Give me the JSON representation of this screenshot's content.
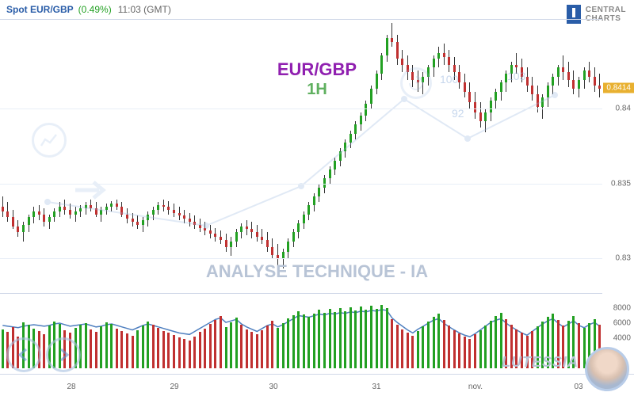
{
  "header": {
    "title": "Spot EUR/GBP",
    "change": "(0.49%)",
    "time": "11:03 (GMT)"
  },
  "logo": {
    "line1": "CENTRAL",
    "line2": "CHARTS"
  },
  "overlay": {
    "pair": "EUR/GBP",
    "tf": "1H",
    "section": "ANALYSE TECHNIQUE - IA"
  },
  "footer_brand": "LUTESSIA",
  "wm_labels": {
    "a": "100",
    "b": "92",
    "c": "103"
  },
  "main": {
    "ylim": [
      0.828,
      0.846
    ],
    "yticks": [
      0.83,
      0.835,
      0.84
    ],
    "price_tag": 0.8414,
    "grid_color": "#e8eef7",
    "up_color": "#22a022",
    "down_color": "#c03030",
    "wick_color": "#333333",
    "candles": [
      [
        0.8335,
        0.8342,
        0.8328,
        0.8332
      ],
      [
        0.8332,
        0.8338,
        0.8325,
        0.8328
      ],
      [
        0.8328,
        0.8333,
        0.832,
        0.8322
      ],
      [
        0.8322,
        0.8326,
        0.8315,
        0.8318
      ],
      [
        0.8318,
        0.8325,
        0.8312,
        0.8323
      ],
      [
        0.8323,
        0.833,
        0.8318,
        0.8328
      ],
      [
        0.8328,
        0.8335,
        0.8324,
        0.8332
      ],
      [
        0.8332,
        0.8336,
        0.8326,
        0.833
      ],
      [
        0.833,
        0.8334,
        0.8322,
        0.8325
      ],
      [
        0.8325,
        0.833,
        0.832,
        0.8328
      ],
      [
        0.8328,
        0.8334,
        0.8325,
        0.8332
      ],
      [
        0.8332,
        0.8338,
        0.8328,
        0.8335
      ],
      [
        0.8335,
        0.834,
        0.833,
        0.8333
      ],
      [
        0.8333,
        0.8337,
        0.8327,
        0.833
      ],
      [
        0.833,
        0.8335,
        0.8325,
        0.8332
      ],
      [
        0.8332,
        0.8336,
        0.8328,
        0.8334
      ],
      [
        0.8334,
        0.8338,
        0.833,
        0.8336
      ],
      [
        0.8336,
        0.834,
        0.8332,
        0.8334
      ],
      [
        0.8334,
        0.8338,
        0.8328,
        0.833
      ],
      [
        0.833,
        0.8335,
        0.8325,
        0.8333
      ],
      [
        0.8333,
        0.8337,
        0.833,
        0.8335
      ],
      [
        0.8335,
        0.8339,
        0.8332,
        0.8337
      ],
      [
        0.8337,
        0.834,
        0.8333,
        0.8335
      ],
      [
        0.8335,
        0.8338,
        0.8328,
        0.833
      ],
      [
        0.833,
        0.8334,
        0.8324,
        0.8327
      ],
      [
        0.8327,
        0.8331,
        0.8322,
        0.8325
      ],
      [
        0.8325,
        0.8329,
        0.832,
        0.8323
      ],
      [
        0.8323,
        0.8328,
        0.8318,
        0.8326
      ],
      [
        0.8326,
        0.8332,
        0.8322,
        0.833
      ],
      [
        0.833,
        0.8335,
        0.8326,
        0.8333
      ],
      [
        0.8333,
        0.8338,
        0.833,
        0.8336
      ],
      [
        0.8336,
        0.834,
        0.8332,
        0.8335
      ],
      [
        0.8335,
        0.8339,
        0.833,
        0.8333
      ],
      [
        0.8333,
        0.8337,
        0.8328,
        0.8331
      ],
      [
        0.8331,
        0.8335,
        0.8326,
        0.8329
      ],
      [
        0.8329,
        0.8333,
        0.8324,
        0.8327
      ],
      [
        0.8327,
        0.8331,
        0.8322,
        0.8325
      ],
      [
        0.8325,
        0.8329,
        0.832,
        0.8323
      ],
      [
        0.8323,
        0.8327,
        0.8318,
        0.8321
      ],
      [
        0.8321,
        0.8325,
        0.8316,
        0.8319
      ],
      [
        0.8319,
        0.8323,
        0.8314,
        0.8317
      ],
      [
        0.8317,
        0.8321,
        0.8312,
        0.8315
      ],
      [
        0.8315,
        0.8319,
        0.831,
        0.8313
      ],
      [
        0.8313,
        0.8317,
        0.8305,
        0.8308
      ],
      [
        0.8308,
        0.8315,
        0.8302,
        0.8312
      ],
      [
        0.8312,
        0.832,
        0.8308,
        0.8318
      ],
      [
        0.8318,
        0.8324,
        0.8314,
        0.8322
      ],
      [
        0.8322,
        0.8326,
        0.8316,
        0.832
      ],
      [
        0.832,
        0.8325,
        0.8314,
        0.8318
      ],
      [
        0.8318,
        0.8323,
        0.8312,
        0.8315
      ],
      [
        0.8315,
        0.832,
        0.831,
        0.8313
      ],
      [
        0.8313,
        0.8318,
        0.8305,
        0.8308
      ],
      [
        0.8308,
        0.8314,
        0.83,
        0.8303
      ],
      [
        0.8303,
        0.831,
        0.8296,
        0.83
      ],
      [
        0.83,
        0.8307,
        0.8294,
        0.8305
      ],
      [
        0.8305,
        0.8314,
        0.83,
        0.8312
      ],
      [
        0.8312,
        0.832,
        0.8308,
        0.8318
      ],
      [
        0.8318,
        0.8326,
        0.8314,
        0.8324
      ],
      [
        0.8324,
        0.8332,
        0.832,
        0.833
      ],
      [
        0.833,
        0.8338,
        0.8326,
        0.8336
      ],
      [
        0.8336,
        0.8344,
        0.8332,
        0.8342
      ],
      [
        0.8342,
        0.835,
        0.8338,
        0.8348
      ],
      [
        0.8348,
        0.8356,
        0.8344,
        0.8354
      ],
      [
        0.8354,
        0.8362,
        0.835,
        0.836
      ],
      [
        0.836,
        0.8368,
        0.8356,
        0.8366
      ],
      [
        0.8366,
        0.8374,
        0.8362,
        0.8372
      ],
      [
        0.8372,
        0.838,
        0.8368,
        0.8378
      ],
      [
        0.8378,
        0.8386,
        0.8374,
        0.8384
      ],
      [
        0.8384,
        0.8392,
        0.838,
        0.839
      ],
      [
        0.839,
        0.8398,
        0.8386,
        0.8396
      ],
      [
        0.8396,
        0.8406,
        0.8392,
        0.8404
      ],
      [
        0.8404,
        0.8416,
        0.84,
        0.8414
      ],
      [
        0.8414,
        0.8426,
        0.841,
        0.8424
      ],
      [
        0.8424,
        0.8438,
        0.842,
        0.8436
      ],
      [
        0.8436,
        0.845,
        0.8432,
        0.8448
      ],
      [
        0.8448,
        0.8458,
        0.8442,
        0.8445
      ],
      [
        0.8445,
        0.845,
        0.843,
        0.8434
      ],
      [
        0.8434,
        0.844,
        0.8425,
        0.843
      ],
      [
        0.843,
        0.8436,
        0.842,
        0.8425
      ],
      [
        0.8425,
        0.843,
        0.8415,
        0.842
      ],
      [
        0.842,
        0.8426,
        0.8412,
        0.8418
      ],
      [
        0.8418,
        0.8425,
        0.841,
        0.8422
      ],
      [
        0.8422,
        0.843,
        0.8416,
        0.8428
      ],
      [
        0.8428,
        0.8436,
        0.8422,
        0.8434
      ],
      [
        0.8434,
        0.8442,
        0.8428,
        0.8438
      ],
      [
        0.8438,
        0.8444,
        0.843,
        0.8435
      ],
      [
        0.8435,
        0.844,
        0.8425,
        0.843
      ],
      [
        0.843,
        0.8435,
        0.842,
        0.8425
      ],
      [
        0.8425,
        0.843,
        0.8414,
        0.8418
      ],
      [
        0.8418,
        0.8424,
        0.8408,
        0.8412
      ],
      [
        0.8412,
        0.8418,
        0.84,
        0.8405
      ],
      [
        0.8405,
        0.8412,
        0.8394,
        0.8398
      ],
      [
        0.8398,
        0.8405,
        0.8388,
        0.8392
      ],
      [
        0.8392,
        0.84,
        0.8385,
        0.8398
      ],
      [
        0.8398,
        0.8408,
        0.8392,
        0.8406
      ],
      [
        0.8406,
        0.8414,
        0.84,
        0.8412
      ],
      [
        0.8412,
        0.842,
        0.8406,
        0.8418
      ],
      [
        0.8418,
        0.8426,
        0.8412,
        0.8424
      ],
      [
        0.8424,
        0.8432,
        0.8418,
        0.843
      ],
      [
        0.843,
        0.8438,
        0.8424,
        0.8428
      ],
      [
        0.8428,
        0.8434,
        0.8418,
        0.8422
      ],
      [
        0.8422,
        0.8428,
        0.8412,
        0.8416
      ],
      [
        0.8416,
        0.8422,
        0.8406,
        0.841
      ],
      [
        0.841,
        0.8416,
        0.8398,
        0.8402
      ],
      [
        0.8402,
        0.841,
        0.8394,
        0.8408
      ],
      [
        0.8408,
        0.8418,
        0.8402,
        0.8416
      ],
      [
        0.8416,
        0.8424,
        0.841,
        0.8422
      ],
      [
        0.8422,
        0.843,
        0.8416,
        0.8428
      ],
      [
        0.8428,
        0.8436,
        0.842,
        0.8425
      ],
      [
        0.8425,
        0.8432,
        0.8415,
        0.842
      ],
      [
        0.842,
        0.8426,
        0.841,
        0.8414
      ],
      [
        0.8414,
        0.8422,
        0.8408,
        0.842
      ],
      [
        0.842,
        0.8428,
        0.8414,
        0.8426
      ],
      [
        0.8426,
        0.8432,
        0.8418,
        0.8422
      ],
      [
        0.8422,
        0.8428,
        0.8412,
        0.8416
      ],
      [
        0.8416,
        0.8424,
        0.8408,
        0.8414
      ]
    ]
  },
  "volume": {
    "ylim": [
      0,
      10000
    ],
    "yticks": [
      4000,
      6000,
      8000
    ],
    "bars": [
      [
        5200,
        1
      ],
      [
        4800,
        0
      ],
      [
        5500,
        0
      ],
      [
        4200,
        0
      ],
      [
        6100,
        1
      ],
      [
        5800,
        1
      ],
      [
        5300,
        1
      ],
      [
        4900,
        0
      ],
      [
        4500,
        0
      ],
      [
        5700,
        1
      ],
      [
        6200,
        1
      ],
      [
        5900,
        1
      ],
      [
        5100,
        0
      ],
      [
        4700,
        0
      ],
      [
        5400,
        1
      ],
      [
        5800,
        1
      ],
      [
        6000,
        1
      ],
      [
        5200,
        0
      ],
      [
        4800,
        0
      ],
      [
        5600,
        1
      ],
      [
        6100,
        1
      ],
      [
        5900,
        1
      ],
      [
        5300,
        0
      ],
      [
        4900,
        0
      ],
      [
        4600,
        0
      ],
      [
        4300,
        0
      ],
      [
        5100,
        1
      ],
      [
        5700,
        1
      ],
      [
        6200,
        1
      ],
      [
        5800,
        0
      ],
      [
        5400,
        0
      ],
      [
        5000,
        0
      ],
      [
        4700,
        0
      ],
      [
        4400,
        0
      ],
      [
        4100,
        0
      ],
      [
        3900,
        0
      ],
      [
        3700,
        0
      ],
      [
        4200,
        0
      ],
      [
        4800,
        0
      ],
      [
        5300,
        0
      ],
      [
        5900,
        0
      ],
      [
        6400,
        0
      ],
      [
        6900,
        0
      ],
      [
        5500,
        1
      ],
      [
        6100,
        1
      ],
      [
        6700,
        1
      ],
      [
        5800,
        0
      ],
      [
        5200,
        0
      ],
      [
        4800,
        0
      ],
      [
        4500,
        0
      ],
      [
        5100,
        0
      ],
      [
        5700,
        0
      ],
      [
        6300,
        0
      ],
      [
        5400,
        1
      ],
      [
        6000,
        1
      ],
      [
        6600,
        1
      ],
      [
        7100,
        1
      ],
      [
        7600,
        1
      ],
      [
        7200,
        1
      ],
      [
        6800,
        1
      ],
      [
        7300,
        1
      ],
      [
        7800,
        1
      ],
      [
        7400,
        1
      ],
      [
        7900,
        1
      ],
      [
        7500,
        1
      ],
      [
        8000,
        1
      ],
      [
        7600,
        1
      ],
      [
        8100,
        1
      ],
      [
        7700,
        1
      ],
      [
        8200,
        1
      ],
      [
        7800,
        1
      ],
      [
        8300,
        1
      ],
      [
        7900,
        1
      ],
      [
        8400,
        1
      ],
      [
        8000,
        1
      ],
      [
        6500,
        0
      ],
      [
        5800,
        0
      ],
      [
        5200,
        0
      ],
      [
        4700,
        0
      ],
      [
        4300,
        0
      ],
      [
        5000,
        1
      ],
      [
        5600,
        1
      ],
      [
        6200,
        1
      ],
      [
        6800,
        1
      ],
      [
        7300,
        1
      ],
      [
        6400,
        0
      ],
      [
        5700,
        0
      ],
      [
        5100,
        0
      ],
      [
        4600,
        0
      ],
      [
        4200,
        0
      ],
      [
        3900,
        0
      ],
      [
        4500,
        0
      ],
      [
        5100,
        1
      ],
      [
        5700,
        1
      ],
      [
        6300,
        1
      ],
      [
        6900,
        1
      ],
      [
        7400,
        1
      ],
      [
        6500,
        0
      ],
      [
        5800,
        0
      ],
      [
        5200,
        0
      ],
      [
        4700,
        0
      ],
      [
        4300,
        0
      ],
      [
        5000,
        0
      ],
      [
        5600,
        1
      ],
      [
        6200,
        1
      ],
      [
        6800,
        1
      ],
      [
        7300,
        1
      ],
      [
        6400,
        0
      ],
      [
        5700,
        0
      ],
      [
        6300,
        1
      ],
      [
        6900,
        1
      ],
      [
        6000,
        0
      ],
      [
        5400,
        1
      ],
      [
        6000,
        1
      ],
      [
        6500,
        1
      ],
      [
        5800,
        0
      ]
    ],
    "line": [
      5800,
      5700,
      5600,
      5500,
      5700,
      5800,
      5900,
      5800,
      5700,
      5800,
      6000,
      6100,
      5900,
      5700,
      5800,
      5900,
      6000,
      5800,
      5600,
      5700,
      5900,
      6000,
      5800,
      5600,
      5400,
      5200,
      5500,
      5800,
      6000,
      5800,
      5600,
      5400,
      5200,
      5000,
      4800,
      4700,
      4600,
      5000,
      5400,
      5800,
      6200,
      6600,
      6800,
      6200,
      6400,
      6600,
      6000,
      5600,
      5300,
      5000,
      5400,
      5800,
      6000,
      5600,
      5900,
      6300,
      6700,
      7100,
      7000,
      6900,
      7100,
      7300,
      7200,
      7400,
      7300,
      7500,
      7400,
      7600,
      7500,
      7700,
      7600,
      7800,
      7700,
      7900,
      7800,
      6800,
      6200,
      5700,
      5200,
      4800,
      5300,
      5700,
      6100,
      6500,
      6700,
      6100,
      5600,
      5200,
      4800,
      4500,
      4300,
      4700,
      5200,
      5700,
      6200,
      6500,
      6700,
      6100,
      5600,
      5200,
      4800,
      4500,
      5000,
      5500,
      6000,
      6400,
      6700,
      6100,
      5600,
      6000,
      6400,
      5800,
      5500,
      5900,
      6200,
      5700
    ]
  },
  "xaxis": {
    "labels": [
      {
        "pos": 90,
        "text": "28"
      },
      {
        "pos": 220,
        "text": "29"
      },
      {
        "pos": 345,
        "text": "30"
      },
      {
        "pos": 475,
        "text": "31"
      },
      {
        "pos": 600,
        "text": "nov."
      },
      {
        "pos": 730,
        "text": "03"
      }
    ]
  }
}
